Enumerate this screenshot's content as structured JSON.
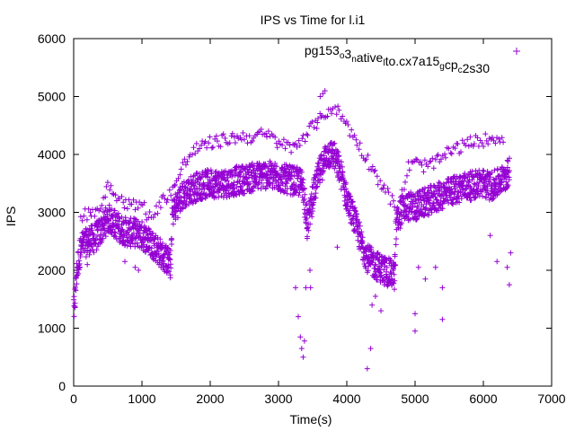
{
  "chart_data": {
    "type": "scatter",
    "title": "IPS vs Time for l.i1",
    "xlabel": "Time(s)",
    "ylabel": "IPS",
    "xlim": [
      0,
      7000
    ],
    "ylim": [
      0,
      6000
    ],
    "xticks": [
      0,
      1000,
      2000,
      3000,
      4000,
      5000,
      6000,
      7000
    ],
    "yticks": [
      0,
      1000,
      2000,
      3000,
      4000,
      5000,
      6000
    ],
    "grid": false,
    "legend_position": "top-right",
    "marker": "plus",
    "color": "#9400d3",
    "series": [
      {
        "name_parts": [
          {
            "t": "pg153",
            "sub": false
          },
          {
            "t": "o",
            "sub": true
          },
          {
            "t": "3",
            "sub": false
          },
          {
            "t": "n",
            "sub": true
          },
          {
            "t": "ative",
            "sub": false
          },
          {
            "t": "l",
            "sub": true
          },
          {
            "t": "to.cx7a15",
            "sub": false
          },
          {
            "t": "g",
            "sub": true
          },
          {
            "t": "cp",
            "sub": false
          },
          {
            "t": "c",
            "sub": true
          },
          {
            "t": "2s30",
            "sub": false
          }
        ],
        "trend": [
          [
            0,
            1300
          ],
          [
            40,
            2000
          ],
          [
            100,
            2400
          ],
          [
            200,
            2500
          ],
          [
            300,
            2550
          ],
          [
            400,
            2700
          ],
          [
            500,
            2900
          ],
          [
            600,
            2800
          ],
          [
            700,
            2700
          ],
          [
            800,
            2650
          ],
          [
            900,
            2650
          ],
          [
            1000,
            2600
          ],
          [
            1100,
            2500
          ],
          [
            1200,
            2400
          ],
          [
            1300,
            2250
          ],
          [
            1420,
            2100
          ],
          [
            1440,
            3000
          ],
          [
            1600,
            3300
          ],
          [
            1800,
            3450
          ],
          [
            2000,
            3500
          ],
          [
            2200,
            3500
          ],
          [
            2400,
            3550
          ],
          [
            2600,
            3600
          ],
          [
            2800,
            3650
          ],
          [
            3000,
            3600
          ],
          [
            3200,
            3550
          ],
          [
            3350,
            3500
          ],
          [
            3420,
            2800
          ],
          [
            3500,
            3300
          ],
          [
            3600,
            3700
          ],
          [
            3700,
            4000
          ],
          [
            3800,
            4000
          ],
          [
            3900,
            3700
          ],
          [
            4000,
            3200
          ],
          [
            4100,
            2900
          ],
          [
            4200,
            2500
          ],
          [
            4300,
            2200
          ],
          [
            4400,
            2100
          ],
          [
            4550,
            2000
          ],
          [
            4700,
            1900
          ],
          [
            4720,
            2800
          ],
          [
            4800,
            3050
          ],
          [
            4900,
            3100
          ],
          [
            5000,
            3100
          ],
          [
            5100,
            3150
          ],
          [
            5200,
            3200
          ],
          [
            5300,
            3250
          ],
          [
            5400,
            3300
          ],
          [
            5500,
            3350
          ],
          [
            5600,
            3400
          ],
          [
            5700,
            3450
          ],
          [
            5800,
            3450
          ],
          [
            5900,
            3500
          ],
          [
            6000,
            3500
          ],
          [
            6100,
            3450
          ],
          [
            6200,
            3500
          ],
          [
            6300,
            3600
          ],
          [
            6380,
            3700
          ]
        ],
        "upper_band": [
          [
            100,
            2950
          ],
          [
            250,
            3000
          ],
          [
            400,
            3100
          ],
          [
            500,
            3500
          ],
          [
            600,
            3350
          ],
          [
            700,
            3200
          ],
          [
            800,
            3150
          ],
          [
            900,
            3100
          ],
          [
            1000,
            3150
          ],
          [
            1100,
            2900
          ],
          [
            1500,
            3500
          ],
          [
            1600,
            3800
          ],
          [
            1700,
            4000
          ],
          [
            1800,
            4100
          ],
          [
            1900,
            4150
          ],
          [
            2000,
            4200
          ],
          [
            2200,
            4250
          ],
          [
            2400,
            4300
          ],
          [
            2600,
            4300
          ],
          [
            2800,
            4350
          ],
          [
            3000,
            4200
          ],
          [
            3200,
            4100
          ],
          [
            3350,
            4300
          ],
          [
            3600,
            4600
          ],
          [
            3700,
            4750
          ],
          [
            3800,
            4800
          ],
          [
            3900,
            4700
          ],
          [
            4750,
            3000
          ],
          [
            4900,
            3800
          ],
          [
            5000,
            3850
          ],
          [
            5100,
            3800
          ],
          [
            5300,
            3850
          ],
          [
            5400,
            3950
          ],
          [
            5500,
            4050
          ],
          [
            5600,
            4100
          ],
          [
            5800,
            4200
          ],
          [
            6000,
            4250
          ],
          [
            6200,
            4300
          ],
          [
            6300,
            4300
          ]
        ],
        "outliers": [
          [
            3250,
            1700
          ],
          [
            3290,
            1200
          ],
          [
            3320,
            850
          ],
          [
            3340,
            650
          ],
          [
            3360,
            500
          ],
          [
            3380,
            780
          ],
          [
            3400,
            1700
          ],
          [
            3420,
            2550
          ],
          [
            3460,
            2000
          ],
          [
            3470,
            1700
          ],
          [
            3570,
            4550
          ],
          [
            3610,
            5000
          ],
          [
            3650,
            5050
          ],
          [
            3680,
            5100
          ],
          [
            3860,
            2400
          ],
          [
            4300,
            300
          ],
          [
            4350,
            650
          ],
          [
            4370,
            1400
          ],
          [
            4420,
            1550
          ],
          [
            4500,
            1300
          ],
          [
            4550,
            1750
          ],
          [
            5000,
            950
          ],
          [
            5000,
            1250
          ],
          [
            5400,
            1150
          ],
          [
            5300,
            2050
          ],
          [
            6200,
            2150
          ],
          [
            6380,
            1750
          ],
          [
            6400,
            2300
          ],
          [
            6350,
            2050
          ],
          [
            6100,
            2600
          ],
          [
            200,
            2100
          ],
          [
            900,
            2050
          ],
          [
            950,
            2000
          ],
          [
            750,
            2150
          ],
          [
            5400,
            1700
          ],
          [
            5150,
            1850
          ],
          [
            5050,
            2050
          ]
        ]
      }
    ]
  }
}
